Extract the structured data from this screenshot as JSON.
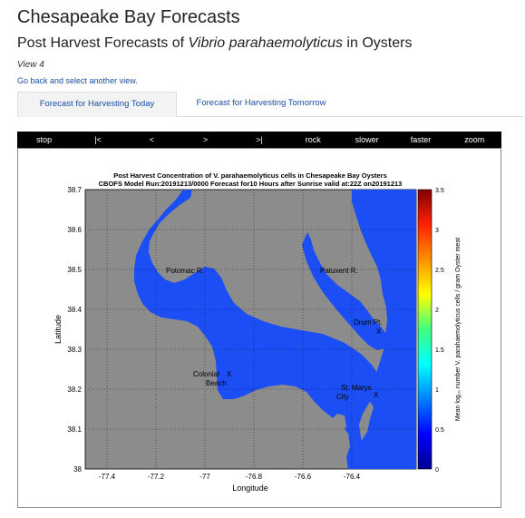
{
  "page": {
    "title": "Chesapeake Bay Forecasts",
    "subtitle_prefix": "Post Harvest Forecasts of ",
    "subtitle_species": "Vibrio parahaemolyticus",
    "subtitle_suffix": " in Oysters",
    "view_label": "View 4",
    "back_link": "Go back and select another view."
  },
  "tabs": [
    {
      "label": "Forecast for Harvesting Today",
      "active": true
    },
    {
      "label": "Forecast for Harvesting Tomorrow",
      "active": false
    }
  ],
  "controls": [
    "stop",
    "|<",
    "<",
    ">",
    ">|",
    "rock",
    "slower",
    "faster",
    "zoom"
  ],
  "map": {
    "title_line1": "Post Harvest Concentration of V. parahaemolyticus cells in Chesapeake Bay Oysters",
    "title_line2": "CBOFS Model Run:20191213/0000 Forecast for10 Hours after Sunrise valid at:22Z on20191213",
    "xlabel": "Longitude",
    "ylabel": "Latitude",
    "x_ticks": [
      "-77.4",
      "-77.2",
      "-77",
      "-76.8",
      "-76.6",
      "-76.4"
    ],
    "y_ticks": [
      "38.7",
      "38.6",
      "38.5",
      "38.4",
      "38.3",
      "38.2",
      "38.1",
      "38"
    ],
    "place_labels": {
      "potomac": "Potomac R.",
      "patuxent": "Patuxent R.",
      "drum_point": "Drum Pt.",
      "colonial_beach_1": "Colonial",
      "colonial_beach_2": "Beach",
      "st_marys_1": "St. Marys",
      "st_marys_2": "City",
      "marker": "X"
    },
    "colorbar": {
      "ticks": [
        "3.5",
        "3",
        "2.5",
        "2",
        "1.5",
        "1",
        "0.5",
        "0"
      ],
      "label": "Mean log₁₀ number V. parahaemolyticus cells / gram Oyster meat"
    },
    "colors": {
      "land": "#8c8c8c",
      "water": "#1c4ef5"
    }
  }
}
